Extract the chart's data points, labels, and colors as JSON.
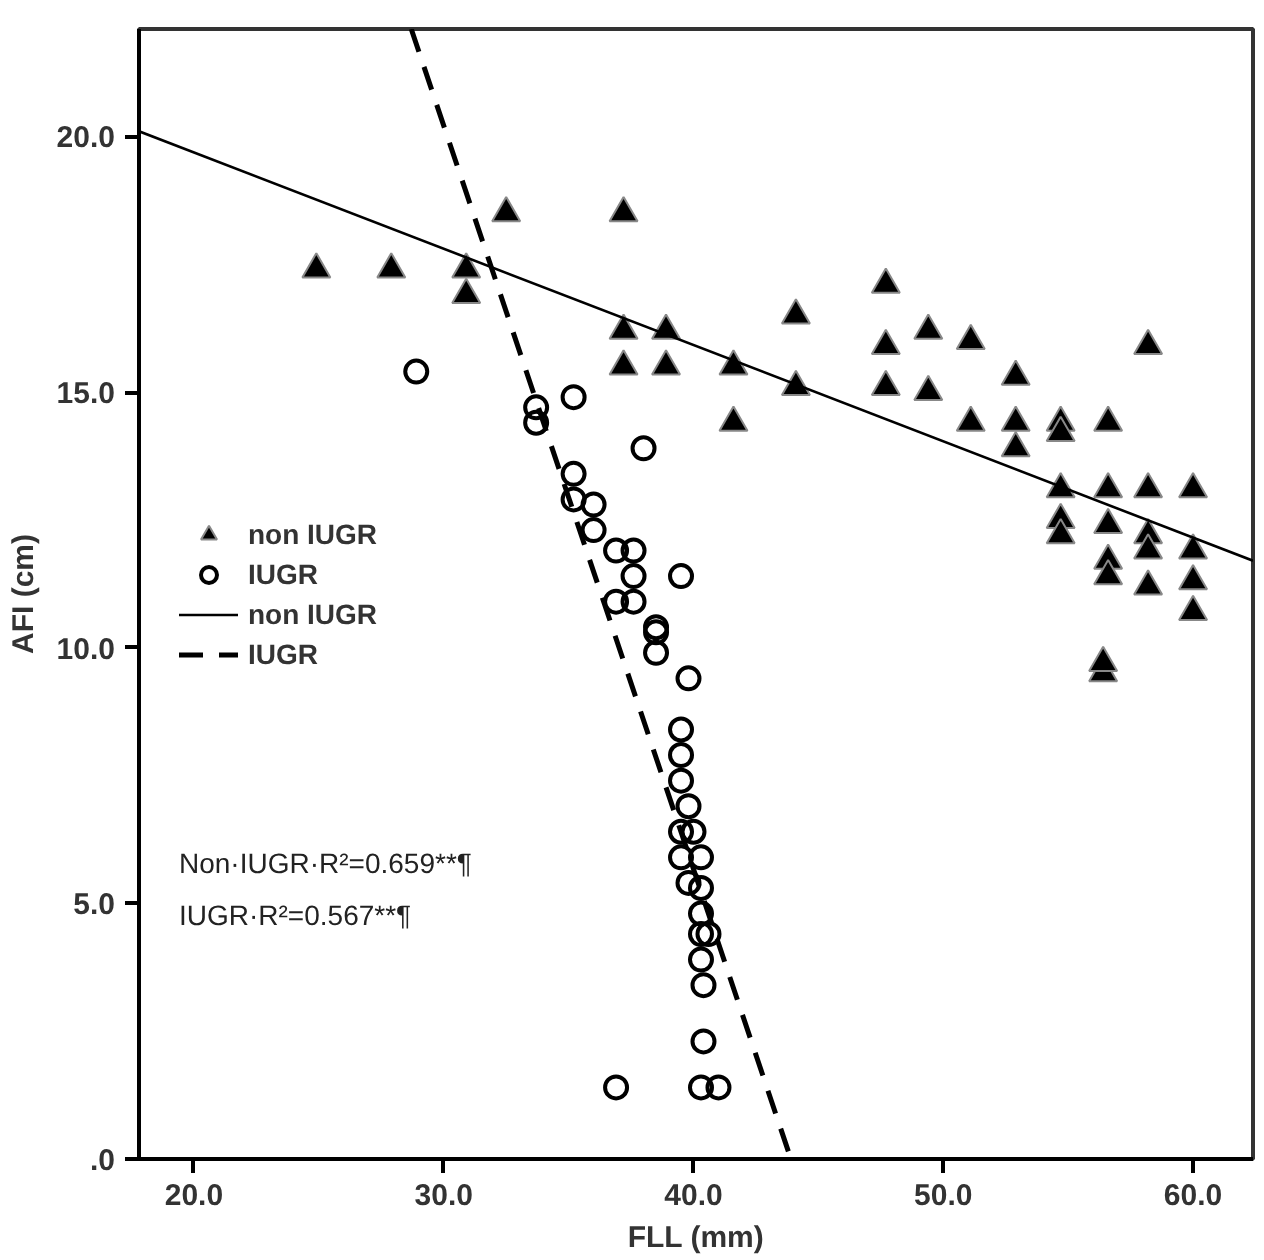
{
  "chart_data": {
    "type": "scatter",
    "xlabel": "FLL (mm)",
    "ylabel": "AFI (cm)",
    "xlim": [
      17.8,
      62.4
    ],
    "ylim": [
      0,
      22.1
    ],
    "xticks": [
      {
        "value": 20,
        "label": "20.0"
      },
      {
        "value": 30,
        "label": "30.0"
      },
      {
        "value": 40,
        "label": "40.0"
      },
      {
        "value": 50,
        "label": "50.0"
      },
      {
        "value": 60,
        "label": "60.0"
      }
    ],
    "yticks": [
      {
        "value": 0,
        "label": ".0"
      },
      {
        "value": 5,
        "label": "5.0"
      },
      {
        "value": 10,
        "label": "10.0"
      },
      {
        "value": 15,
        "label": "15.0"
      },
      {
        "value": 20,
        "label": "20.0"
      }
    ],
    "grid": false,
    "legend": "left",
    "annotations": [
      "Non·IUGR·R²=0.659**¶",
      "IUGR·R²=0.567**¶"
    ],
    "series": [
      {
        "name": "non IUGR",
        "marker": "triangle",
        "color": "#000000",
        "x": [
          24.9,
          27.9,
          30.9,
          30.9,
          32.5,
          37.2,
          37.2,
          38.9,
          37.2,
          38.9,
          41.6,
          41.6,
          44.1,
          44.1,
          47.7,
          47.7,
          47.7,
          49.4,
          49.4,
          51.1,
          51.1,
          52.9,
          52.9,
          52.9,
          54.7,
          54.7,
          56.6,
          58.2,
          54.7,
          56.6,
          58.2,
          60.0,
          54.7,
          54.7,
          56.6,
          56.6,
          56.6,
          58.2,
          58.2,
          58.2,
          60.0,
          60.0,
          60.0,
          56.4,
          56.4
        ],
        "values": [
          17.4,
          17.4,
          17.4,
          16.9,
          18.5,
          18.5,
          16.2,
          16.2,
          15.5,
          15.5,
          15.5,
          14.4,
          16.5,
          15.1,
          17.1,
          15.9,
          15.1,
          16.2,
          15.0,
          16.0,
          14.4,
          15.3,
          14.4,
          13.9,
          14.4,
          14.2,
          14.4,
          15.9,
          13.1,
          13.1,
          13.1,
          13.1,
          12.5,
          12.2,
          12.4,
          11.7,
          11.4,
          12.2,
          11.9,
          11.2,
          11.9,
          11.3,
          10.7,
          9.5,
          9.7
        ]
      },
      {
        "name": "IUGR",
        "marker": "circle",
        "color": "#000000",
        "x": [
          28.9,
          33.7,
          33.7,
          35.2,
          38.0,
          35.2,
          35.2,
          36.0,
          36.0,
          36.9,
          37.6,
          37.6,
          36.9,
          37.6,
          39.5,
          38.5,
          38.5,
          38.5,
          39.8,
          39.5,
          39.5,
          39.5,
          39.8,
          39.5,
          40.0,
          39.5,
          40.3,
          39.8,
          40.3,
          40.3,
          40.3,
          40.6,
          40.3,
          40.4,
          40.4,
          36.9,
          40.3,
          41.0
        ],
        "values": [
          15.4,
          14.7,
          14.4,
          14.9,
          13.9,
          13.4,
          12.9,
          12.8,
          12.3,
          11.9,
          11.9,
          11.4,
          10.9,
          10.9,
          11.4,
          10.4,
          10.3,
          9.9,
          9.4,
          8.4,
          7.9,
          7.4,
          6.9,
          6.4,
          6.4,
          5.9,
          5.9,
          5.4,
          5.3,
          4.8,
          4.4,
          4.4,
          3.9,
          3.4,
          2.3,
          1.4,
          1.4,
          1.4
        ]
      },
      {
        "name": "non IUGR",
        "type": "line",
        "line_style": "solid",
        "color": "#000000",
        "x": [
          17.8,
          62.4
        ],
        "values": [
          20.1,
          11.7
        ]
      },
      {
        "name": "IUGR",
        "type": "line",
        "line_style": "dashed",
        "color": "#000000",
        "x": [
          28.7,
          43.9
        ],
        "values": [
          22.1,
          0
        ]
      }
    ]
  }
}
